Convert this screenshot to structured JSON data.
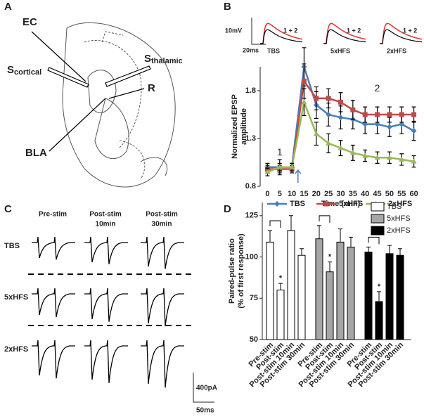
{
  "panel_labels": [
    "A",
    "B",
    "C",
    "D"
  ],
  "diagram_a": {
    "ec": "EC",
    "s_cortical": {
      "main": "S",
      "sub": "cortical"
    },
    "s_thalamic": {
      "main": "S",
      "sub": "thalamic"
    },
    "r": "R",
    "bla": "BLA"
  },
  "traces_b": {
    "scale_v": "10mV",
    "scale_t": "20ms",
    "labels": [
      "TBS",
      "5xHFS",
      "2xHFS"
    ],
    "overlay": "1 + 2"
  },
  "traces_c": {
    "columns": [
      [
        "Pre-stim"
      ],
      [
        "Post-stim",
        "10min"
      ],
      [
        "Post-stim",
        "30min"
      ]
    ],
    "rows": [
      "TBS",
      "5xHFS",
      "2xHFS"
    ],
    "scale_i": "400pA",
    "scale_t": "50ms"
  },
  "chart_data": [
    {
      "type": "line",
      "y_label": [
        "Normalized EPSP",
        "amplitude"
      ],
      "x_label": "Time (min)",
      "x": [
        0,
        5,
        10,
        15,
        20,
        25,
        30,
        35,
        40,
        45,
        50,
        55,
        60
      ],
      "xlim": [
        -3,
        63
      ],
      "xticks": [
        0,
        5,
        10,
        15,
        20,
        25,
        30,
        35,
        40,
        45,
        50,
        55,
        60
      ],
      "ylim": [
        0.8,
        2.05
      ],
      "yticks": [
        0.8,
        1.3,
        1.8
      ],
      "annotations": [
        "1",
        "2"
      ],
      "legend": "bottom",
      "series": [
        {
          "name": "TBS",
          "color": "#4a7ebb",
          "marker": "diamond",
          "values": [
            1.0,
            1.0,
            1.0,
            2.05,
            1.65,
            1.55,
            1.52,
            1.5,
            1.45,
            1.45,
            1.42,
            1.45,
            1.38
          ],
          "errors": [
            0.04,
            0.08,
            0.04,
            0.2,
            0.14,
            0.12,
            0.12,
            0.1,
            0.1,
            0.1,
            0.1,
            0.1,
            0.1
          ]
        },
        {
          "name": "5xHFS",
          "color": "#be4b48",
          "marker": "square",
          "values": [
            0.98,
            0.98,
            0.98,
            1.9,
            1.72,
            1.72,
            1.68,
            1.6,
            1.55,
            1.55,
            1.55,
            1.55,
            1.55
          ],
          "errors": [
            0.04,
            0.04,
            0.04,
            0.18,
            0.12,
            0.1,
            0.1,
            0.1,
            0.08,
            0.08,
            0.08,
            0.08,
            0.08
          ]
        },
        {
          "name": "2xHFS",
          "color": "#98b954",
          "marker": "triangle",
          "values": [
            0.95,
            1.0,
            1.0,
            1.68,
            1.35,
            1.25,
            1.2,
            1.15,
            1.12,
            1.1,
            1.1,
            1.08,
            1.06
          ],
          "errors": [
            0.04,
            0.04,
            0.04,
            0.14,
            0.12,
            0.1,
            0.08,
            0.08,
            0.06,
            0.06,
            0.06,
            0.06,
            0.06
          ]
        }
      ]
    },
    {
      "type": "bar",
      "y_label": [
        "Paired-pulse ratio",
        "(% of first response)"
      ],
      "categories": [
        "Pre-stim",
        "Post-stim",
        "Post-stim 10min",
        "Post-stim 30min"
      ],
      "ylim": [
        50,
        133
      ],
      "yticks": [
        50,
        75,
        100,
        125
      ],
      "legend": "top-right",
      "star": "*",
      "series": [
        {
          "name": "TBS",
          "color": "#ffffff",
          "values": [
            109,
            80,
            116,
            101
          ],
          "errors": [
            7,
            4,
            9,
            4
          ]
        },
        {
          "name": "5xHFS",
          "color": "#a6a6a6",
          "values": [
            111,
            91,
            109,
            106
          ],
          "errors": [
            8,
            6,
            8,
            6
          ]
        },
        {
          "name": "2xHFS",
          "color": "#000000",
          "values": [
            103,
            73,
            102,
            101
          ],
          "errors": [
            3,
            6,
            5,
            4
          ]
        }
      ]
    }
  ]
}
